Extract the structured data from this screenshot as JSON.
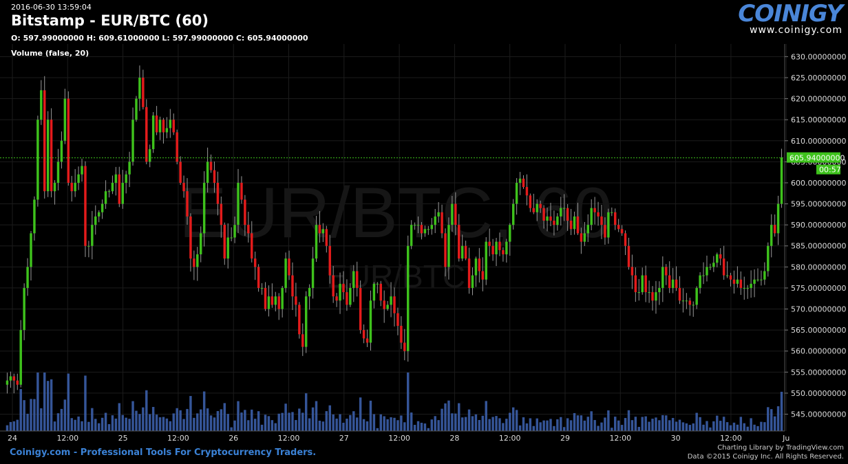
{
  "header": {
    "timestamp": "2016-06-30 13:59:04",
    "title": "Bitstamp - EUR/BTC (60)",
    "ohlc": "O: 597.99000000 H: 609.61000000 L: 597.99000000 C: 605.94000000",
    "volume_label": "Volume (false, 20)"
  },
  "logo": {
    "text": "COINIGY",
    "url": "www.coinigy.com"
  },
  "watermark": {
    "main": "EUR/BTC, 60",
    "sub": "EUR/BTC"
  },
  "footer": {
    "left": "Coinigy.com - Professional Tools For Cryptocurrency Traders.",
    "right_line1": "Charting Library by TradingView.com",
    "right_line2": "Data ©2015 Coinigy Inc. All Rights Reserved."
  },
  "price_tag": {
    "price": "605.94000000",
    "countdown": "00:57"
  },
  "colors": {
    "up": "#3ec21c",
    "down": "#e31b1b",
    "volume": "#3b5ea8",
    "grid": "#1c1c1c",
    "logo": "#4a86d8"
  },
  "chart_data": {
    "type": "candlestick",
    "interval": "60",
    "ylim": [
      541,
      633
    ],
    "y_ticks": [
      "545.00000000",
      "550.00000000",
      "555.00000000",
      "560.00000000",
      "565.00000000",
      "570.00000000",
      "575.00000000",
      "580.00000000",
      "585.00000000",
      "590.00000000",
      "595.00000000",
      "600.00000000",
      "605.00000000",
      "610.00000000",
      "615.00000000",
      "620.00000000",
      "625.00000000",
      "630.00000000"
    ],
    "x_ticks": [
      "24",
      "12:00",
      "25",
      "12:00",
      "26",
      "12:00",
      "27",
      "12:00",
      "28",
      "12:00",
      "29",
      "12:00",
      "30",
      "12:00",
      "Ju"
    ],
    "last_price": 605.94,
    "close": [
      553,
      554,
      553,
      552,
      565,
      575,
      580,
      588,
      596,
      615,
      622,
      598,
      615,
      598,
      600,
      605,
      610,
      620,
      600,
      598,
      600,
      602,
      604,
      585,
      585,
      590,
      592,
      593,
      595,
      598,
      598,
      600,
      602,
      595,
      600,
      602,
      605,
      615,
      620,
      625,
      618,
      605,
      608,
      616,
      612,
      615,
      612,
      613,
      615,
      612,
      605,
      600,
      598,
      592,
      582,
      580,
      583,
      588,
      600,
      605,
      603,
      600,
      595,
      590,
      582,
      587,
      587,
      590,
      600,
      596,
      590,
      588,
      582,
      580,
      575,
      575,
      570,
      573,
      571,
      573,
      570,
      575,
      582,
      578,
      573,
      571,
      564,
      561,
      573,
      575,
      582,
      590,
      588,
      589,
      585,
      578,
      573,
      572,
      576,
      574,
      571,
      575,
      579,
      575,
      565,
      563,
      562,
      572,
      576,
      576,
      572,
      570,
      571,
      573,
      569,
      566,
      562,
      560,
      585,
      590,
      590,
      590,
      588,
      589,
      589,
      590,
      592,
      593,
      588,
      580,
      590,
      595,
      590,
      582,
      585,
      582,
      575,
      578,
      582,
      579,
      577,
      586,
      585,
      583,
      586,
      584,
      583,
      586,
      590,
      595,
      600,
      601,
      599,
      597,
      594,
      593,
      595,
      594,
      591,
      592,
      591,
      590,
      592,
      594,
      594,
      591,
      589,
      592,
      588,
      586,
      588,
      590,
      594,
      593,
      592,
      590,
      587,
      593,
      593,
      590,
      589,
      588,
      585,
      580,
      578,
      574,
      574,
      578,
      574,
      574,
      572,
      574,
      575,
      580,
      578,
      575,
      577,
      575,
      572,
      572,
      572,
      571,
      571,
      575,
      578,
      578,
      580,
      580,
      581,
      583,
      582,
      578,
      578,
      577,
      576,
      577,
      575,
      575,
      575,
      576,
      577,
      577,
      577,
      579,
      585,
      590,
      588,
      595,
      606
    ]
  }
}
